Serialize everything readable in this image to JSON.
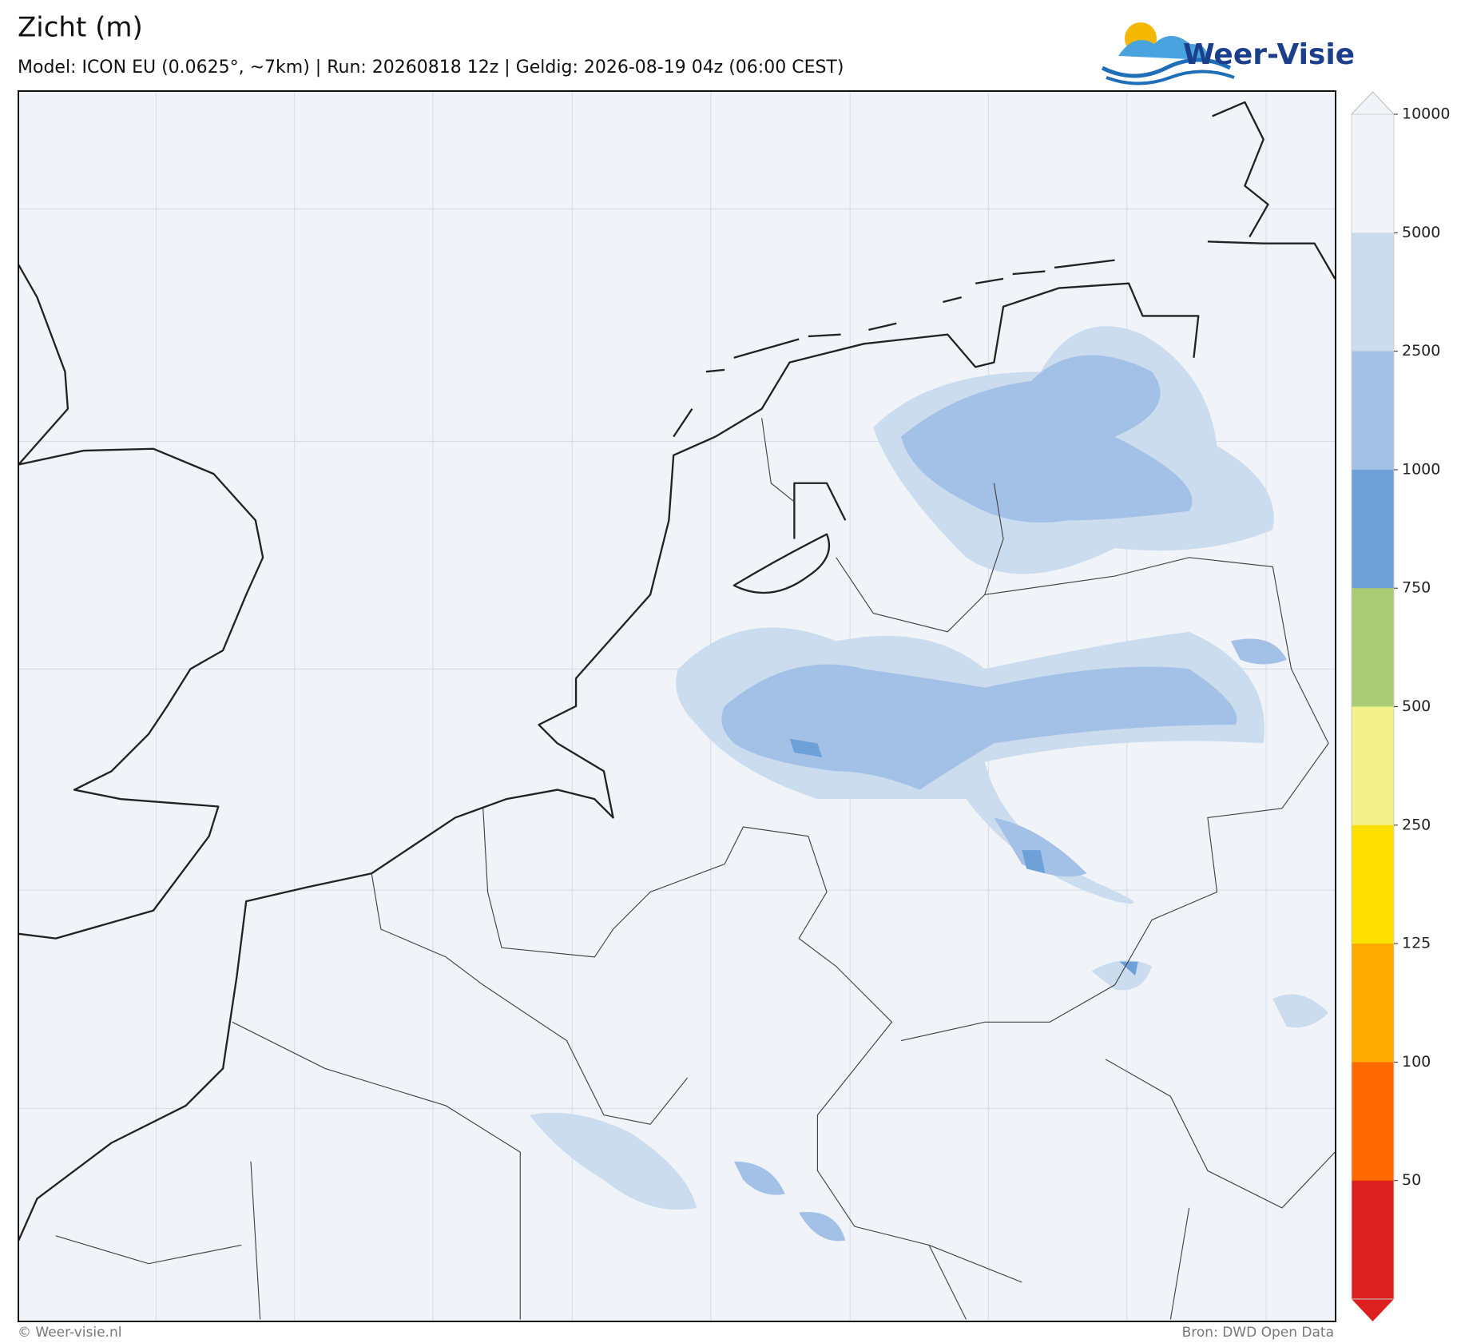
{
  "header": {
    "title": "Zicht (m)",
    "subtitle": "Model: ICON EU (0.0625°, ~7km)  |  Run: 20260818 12z  |  Geldig: 2026-08-19 04z (06:00 CEST)",
    "logo": "Weer-Visie"
  },
  "legend": {
    "levels": [
      10000,
      5000,
      2500,
      1000,
      750,
      500,
      250,
      125,
      100,
      50
    ],
    "colors": [
      "#f0f4f9",
      "#ccdcef",
      "#a3c1e6",
      "#6fa1d9",
      "#a9cc74",
      "#f3f28a",
      "#fde000",
      "#ffaa00",
      "#ff6a00",
      "#dc2020"
    ]
  },
  "footer": {
    "copyright": "© Weer-visie.nl",
    "source": "Bron: DWD Open Data"
  }
}
